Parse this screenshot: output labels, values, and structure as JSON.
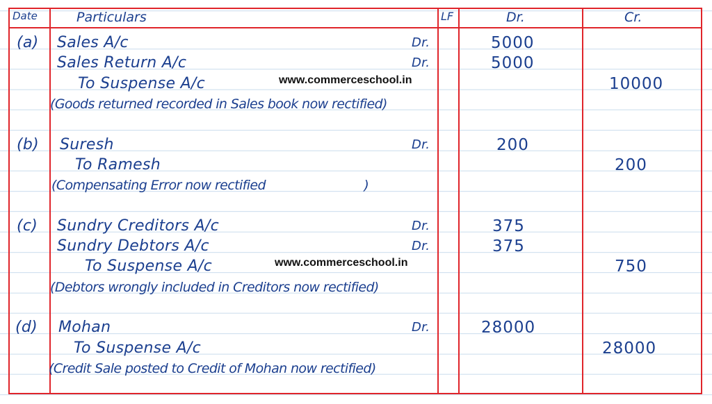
{
  "header": {
    "date": "Date",
    "particulars": "Particulars",
    "lf": "LF",
    "dr": "Dr.",
    "cr": "Cr."
  },
  "watermark": "www.commerceschool.in",
  "entries": [
    {
      "label": "(a)",
      "lines": [
        {
          "text": "Sales A/c",
          "dr_mark": "Dr.",
          "debit": "5000"
        },
        {
          "text": "Sales Return A/c",
          "dr_mark": "Dr.",
          "debit": "5000"
        },
        {
          "text": "To Suspense A/c",
          "credit": "10000"
        },
        {
          "text": "(Goods returned recorded in Sales book now rectified)"
        }
      ]
    },
    {
      "label": "(b)",
      "lines": [
        {
          "text": "Suresh",
          "dr_mark": "Dr.",
          "debit": "200"
        },
        {
          "text": "To Ramesh",
          "credit": "200"
        },
        {
          "text": "(Compensating Error now rectified                          )"
        }
      ]
    },
    {
      "label": "(c)",
      "lines": [
        {
          "text": "Sundry Creditors A/c",
          "dr_mark": "Dr.",
          "debit": "375"
        },
        {
          "text": "Sundry Debtors A/c",
          "dr_mark": "Dr.",
          "debit": "375"
        },
        {
          "text": "To Suspense A/c",
          "credit": "750"
        },
        {
          "text": "(Debtors wrongly included in Creditors now rectified)"
        }
      ]
    },
    {
      "label": "(d)",
      "lines": [
        {
          "text": "Mohan",
          "dr_mark": "Dr.",
          "debit": "28000"
        },
        {
          "text": "To Suspense A/c",
          "credit": "28000"
        },
        {
          "text": "(Credit Sale posted to Credit of Mohan now rectified)"
        }
      ]
    }
  ],
  "colors": {
    "ink": "#1b3f8f",
    "rule": "#e0242a",
    "line": "#c9dcec"
  }
}
